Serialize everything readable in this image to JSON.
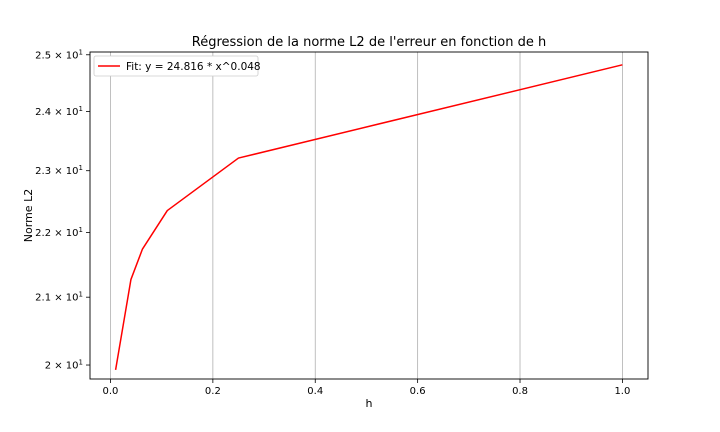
{
  "chart_data": {
    "type": "line",
    "title": "Régression de la norme L2 de l'erreur en fonction de h",
    "xlabel": "h",
    "ylabel": "Norme L2",
    "xlim": [
      -0.04,
      1.05
    ],
    "ylim": [
      19.8,
      25.05
    ],
    "y_scale": "log",
    "grid": "vertical",
    "legend_position": "top-left",
    "x_ticks": [
      0.0,
      0.2,
      0.4,
      0.6,
      0.8,
      1.0
    ],
    "x_tick_labels": [
      "0.0",
      "0.2",
      "0.4",
      "0.6",
      "0.8",
      "1.0"
    ],
    "y_ticks": [
      {
        "value": 20,
        "base": "2",
        "exp": "1"
      },
      {
        "value": 21,
        "base": "2.1",
        "exp": "1"
      },
      {
        "value": 22,
        "base": "2.2",
        "exp": "1"
      },
      {
        "value": 23,
        "base": "2.3",
        "exp": "1"
      },
      {
        "value": 24,
        "base": "2.4",
        "exp": "1"
      },
      {
        "value": 25,
        "base": "2.5",
        "exp": "1"
      }
    ],
    "series": [
      {
        "name": "Fit: y = 24.816 * x^0.048",
        "color": "#ff0000",
        "x": [
          0.01,
          0.04,
          0.0625,
          0.111,
          0.25,
          1.0
        ],
        "y": [
          19.93,
          21.27,
          21.74,
          22.35,
          23.21,
          24.82
        ]
      }
    ]
  }
}
